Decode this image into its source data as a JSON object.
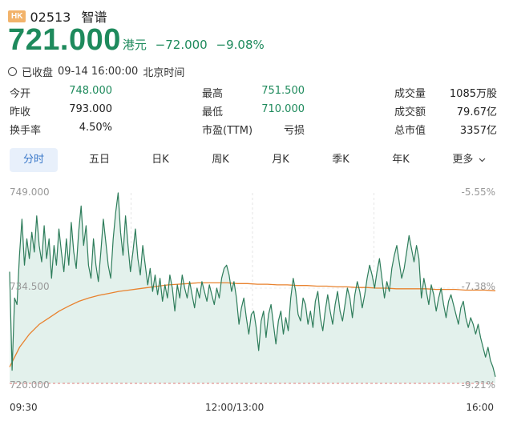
{
  "header": {
    "market_badge": "HK",
    "stock_code": "02513",
    "stock_name": "智谱"
  },
  "quote": {
    "price": "721.000",
    "currency": "港元",
    "change": "−72.000",
    "change_pct": "−9.08%"
  },
  "status": {
    "state": "已收盘",
    "datetime": "09-14 16:00:00",
    "timezone": "北京时间"
  },
  "stats": [
    {
      "label": "今开",
      "value": "748.000",
      "color": "#1e8a5c"
    },
    {
      "label": "最高",
      "value": "751.500",
      "color": "#1e8a5c"
    },
    {
      "label": "成交量",
      "value": "1085万股",
      "color": "#222222"
    },
    {
      "label": "昨收",
      "value": "793.000",
      "color": "#222222"
    },
    {
      "label": "最低",
      "value": "710.000",
      "color": "#1e8a5c"
    },
    {
      "label": "成交额",
      "value": "79.67亿",
      "color": "#222222"
    },
    {
      "label": "换手率",
      "value": "4.50%",
      "color": "#222222"
    },
    {
      "label": "市盈(TTM)",
      "value": "亏损",
      "color": "#222222"
    },
    {
      "label": "总市值",
      "value": "3357亿",
      "color": "#222222"
    }
  ],
  "tabs": [
    {
      "label": "分时",
      "active": true
    },
    {
      "label": "五日"
    },
    {
      "label": "日K"
    },
    {
      "label": "周K"
    },
    {
      "label": "月K"
    },
    {
      "label": "季K"
    },
    {
      "label": "年K"
    },
    {
      "label": "更多"
    }
  ],
  "chart_data": {
    "type": "line",
    "y_left_ticks": [
      "749.000",
      "734.500",
      "720.000"
    ],
    "y_right_ticks": [
      "-5.55%",
      "-7.38%",
      "-9.21%"
    ],
    "x_ticks": [
      "09:30",
      "12:00/13:00",
      "16:00"
    ],
    "ylim": [
      720.0,
      749.0
    ],
    "reference_line": 720.0,
    "colors": {
      "price": "#2e7d5b",
      "average": "#e8822e",
      "fill": "#e3f1ec",
      "reference": "#e07a7a"
    },
    "series": [
      {
        "role": "price",
        "values": [
          737.0,
          722.0,
          733.0,
          732.0,
          739.5,
          745.0,
          738.0,
          742.0,
          739.0,
          743.0,
          740.0,
          745.5,
          741.0,
          738.5,
          744.0,
          739.0,
          742.0,
          736.0,
          741.0,
          738.0,
          743.5,
          740.0,
          737.0,
          742.0,
          738.0,
          744.5,
          740.0,
          737.5,
          743.0,
          747.0,
          741.0,
          744.0,
          738.0,
          736.0,
          742.0,
          738.0,
          735.5,
          740.0,
          745.0,
          741.5,
          738.0,
          736.0,
          742.0,
          746.0,
          749.0,
          743.0,
          739.5,
          745.5,
          741.0,
          737.0,
          740.0,
          743.5,
          739.0,
          736.5,
          741.0,
          738.0,
          735.0,
          737.5,
          734.0,
          736.5,
          733.5,
          736.0,
          732.5,
          735.0,
          733.0,
          736.5,
          734.5,
          731.0,
          735.0,
          733.0,
          736.5,
          734.5,
          733.0,
          735.5,
          733.5,
          731.5,
          734.5,
          733.0,
          735.5,
          734.0,
          732.5,
          735.0,
          733.5,
          732.0,
          734.5,
          733.0,
          736.0,
          737.5,
          738.0,
          736.5,
          734.0,
          735.5,
          733.0,
          729.0,
          731.5,
          733.0,
          730.0,
          727.5,
          730.5,
          731.0,
          728.5,
          725.0,
          729.5,
          731.0,
          727.0,
          730.5,
          732.0,
          729.0,
          726.0,
          729.5,
          731.0,
          727.5,
          730.0,
          728.0,
          733.0,
          736.0,
          734.0,
          730.5,
          729.5,
          733.0,
          732.0,
          729.0,
          731.0,
          728.5,
          732.5,
          734.0,
          730.0,
          728.0,
          731.0,
          733.5,
          731.0,
          729.0,
          732.0,
          734.0,
          731.0,
          729.5,
          732.0,
          734.5,
          733.0,
          730.0,
          733.5,
          735.5,
          734.0,
          731.5,
          733.5,
          736.0,
          738.0,
          736.5,
          734.5,
          737.0,
          739.0,
          736.0,
          733.0,
          735.5,
          734.0,
          737.5,
          739.5,
          741.0,
          738.5,
          736.0,
          737.5,
          740.0,
          742.5,
          740.5,
          738.5,
          741.0,
          739.0,
          733.0,
          736.0,
          734.0,
          732.0,
          735.0,
          733.5,
          731.0,
          733.0,
          734.5,
          732.0,
          730.0,
          732.5,
          733.5,
          732.0,
          730.5,
          729.0,
          731.5,
          732.5,
          730.0,
          728.5,
          730.0,
          729.0,
          727.5,
          729.0,
          727.0,
          725.5,
          724.0,
          725.5,
          723.5,
          722.5,
          721.0
        ]
      },
      {
        "role": "average",
        "values": [
          722.5,
          725.5,
          727.5,
          729.0,
          730.0,
          731.0,
          731.8,
          732.5,
          733.0,
          733.4,
          733.7,
          734.0,
          734.2,
          734.4,
          734.6,
          734.8,
          735.0,
          735.1,
          735.2,
          735.3,
          735.3,
          735.3,
          735.3,
          735.2,
          735.2,
          735.1,
          735.1,
          735.0,
          735.0,
          734.9,
          734.9,
          734.8,
          734.8,
          734.7,
          734.7,
          734.6,
          734.6,
          734.5,
          734.5,
          734.4,
          734.4,
          734.4,
          734.4,
          734.3,
          734.3,
          734.3,
          734.2,
          734.2,
          734.2,
          734.1
        ]
      }
    ]
  }
}
